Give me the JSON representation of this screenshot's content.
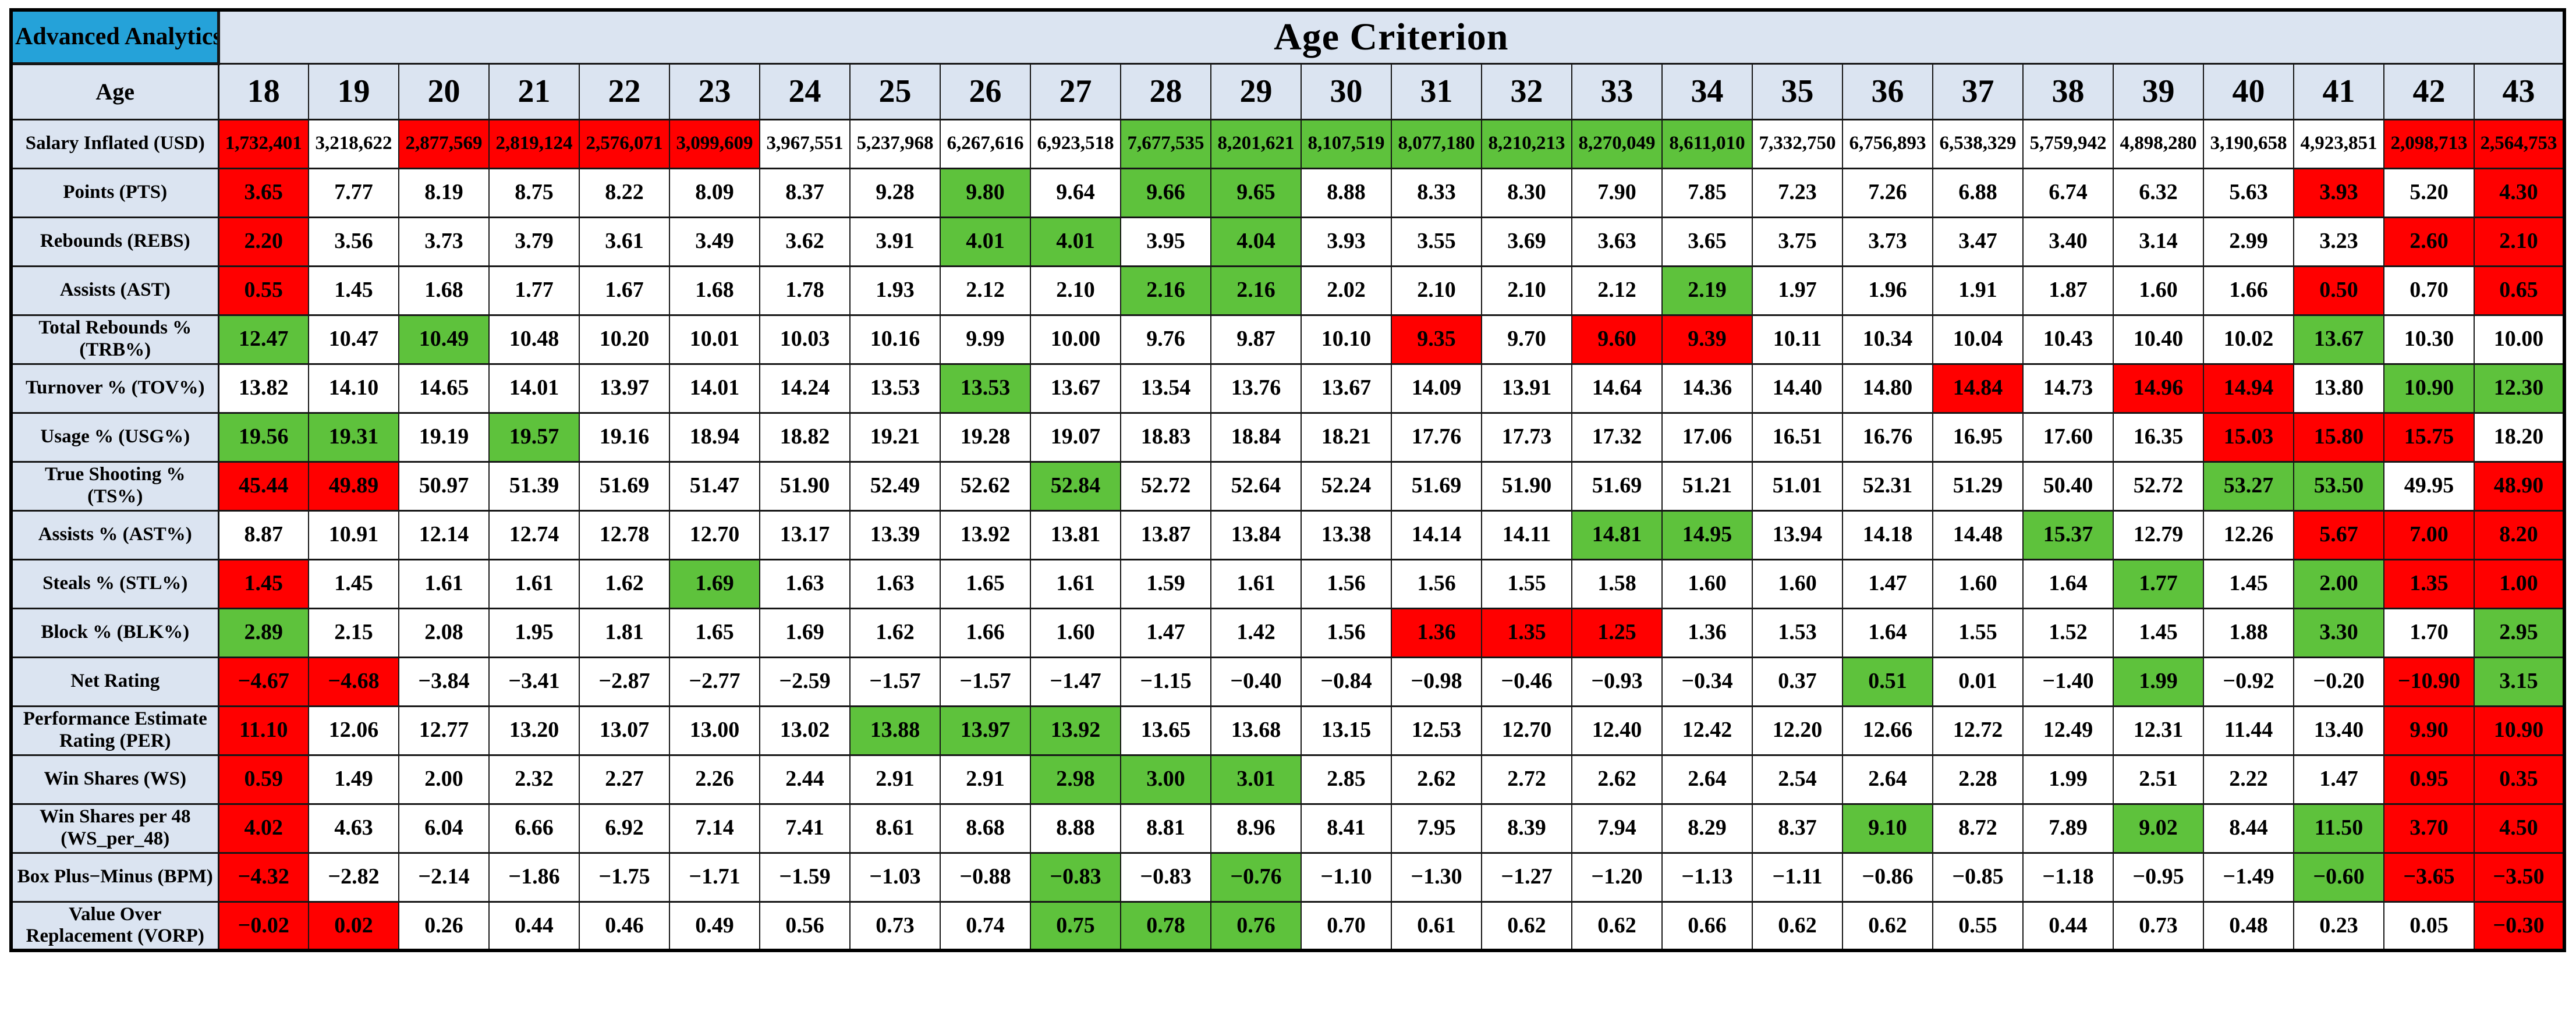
{
  "app": {
    "corner_label": "Advanced Analytics",
    "title": "Age Criterion",
    "age_row_label": "Age"
  },
  "colors": {
    "header_blue": "#25a2d9",
    "label_bg": "#dbe4f1",
    "pos_green": "#5ec23c",
    "neg_red": "#ff0000",
    "cell_white": "#ffffff",
    "border": "#161616"
  },
  "ages": [
    "18",
    "19",
    "20",
    "21",
    "22",
    "23",
    "24",
    "25",
    "26",
    "27",
    "28",
    "29",
    "30",
    "31",
    "32",
    "33",
    "34",
    "35",
    "36",
    "37",
    "38",
    "39",
    "40",
    "41",
    "42",
    "43"
  ],
  "rows": [
    {
      "label": "Salary Inflated (USD)",
      "values": [
        "1,732,401",
        "3,218,622",
        "2,877,569",
        "2,819,124",
        "2,576,071",
        "3,099,609",
        "3,967,551",
        "5,237,968",
        "6,267,616",
        "6,923,518",
        "7,677,535",
        "8,201,621",
        "8,107,519",
        "8,077,180",
        "8,210,213",
        "8,270,049",
        "8,611,010",
        "7,332,750",
        "6,756,893",
        "6,538,329",
        "5,759,942",
        "4,898,280",
        "3,190,658",
        "4,923,851",
        "2,098,713",
        "2,564,753"
      ],
      "colors": "rwrrrrwwwwgggggggwwwwwwwrr"
    },
    {
      "label": "Points (PTS)",
      "values": [
        "3.65",
        "7.77",
        "8.19",
        "8.75",
        "8.22",
        "8.09",
        "8.37",
        "9.28",
        "9.80",
        "9.64",
        "9.66",
        "9.65",
        "8.88",
        "8.33",
        "8.30",
        "7.90",
        "7.85",
        "7.23",
        "7.26",
        "6.88",
        "6.74",
        "6.32",
        "5.63",
        "3.93",
        "5.20",
        "4.30"
      ],
      "colors": "rwwwwwwwgwggwwwwwwwwwwwrwr"
    },
    {
      "label": "Rebounds (REBS)",
      "values": [
        "2.20",
        "3.56",
        "3.73",
        "3.79",
        "3.61",
        "3.49",
        "3.62",
        "3.91",
        "4.01",
        "4.01",
        "3.95",
        "4.04",
        "3.93",
        "3.55",
        "3.69",
        "3.63",
        "3.65",
        "3.75",
        "3.73",
        "3.47",
        "3.40",
        "3.14",
        "2.99",
        "3.23",
        "2.60",
        "2.10"
      ],
      "colors": "rwwwwwwwggwgwwwwwwwwwwwwrr"
    },
    {
      "label": "Assists (AST)",
      "values": [
        "0.55",
        "1.45",
        "1.68",
        "1.77",
        "1.67",
        "1.68",
        "1.78",
        "1.93",
        "2.12",
        "2.10",
        "2.16",
        "2.16",
        "2.02",
        "2.10",
        "2.10",
        "2.12",
        "2.19",
        "1.97",
        "1.96",
        "1.91",
        "1.87",
        "1.60",
        "1.66",
        "0.50",
        "0.70",
        "0.65"
      ],
      "colors": "rwwwwwwwwwggwwwwgwwwwwwrwr"
    },
    {
      "label": "Total Rebounds % (TRB%)",
      "values": [
        "12.47",
        "10.47",
        "10.49",
        "10.48",
        "10.20",
        "10.01",
        "10.03",
        "10.16",
        "9.99",
        "10.00",
        "9.76",
        "9.87",
        "10.10",
        "9.35",
        "9.70",
        "9.60",
        "9.39",
        "10.11",
        "10.34",
        "10.04",
        "10.43",
        "10.40",
        "10.02",
        "13.67",
        "10.30",
        "10.00"
      ],
      "colors": "gwgwwwwwwwwwwrwrrwwwwwwgww"
    },
    {
      "label": "Turnover % (TOV%)",
      "values": [
        "13.82",
        "14.10",
        "14.65",
        "14.01",
        "13.97",
        "14.01",
        "14.24",
        "13.53",
        "13.53",
        "13.67",
        "13.54",
        "13.76",
        "13.67",
        "14.09",
        "13.91",
        "14.64",
        "14.36",
        "14.40",
        "14.80",
        "14.84",
        "14.73",
        "14.96",
        "14.94",
        "13.80",
        "10.90",
        "12.30"
      ],
      "colors": "wwwwwwwwgwwwwwwwwwwrwrrwgg"
    },
    {
      "label": "Usage % (USG%)",
      "values": [
        "19.56",
        "19.31",
        "19.19",
        "19.57",
        "19.16",
        "18.94",
        "18.82",
        "19.21",
        "19.28",
        "19.07",
        "18.83",
        "18.84",
        "18.21",
        "17.76",
        "17.73",
        "17.32",
        "17.06",
        "16.51",
        "16.76",
        "16.95",
        "17.60",
        "16.35",
        "15.03",
        "15.80",
        "15.75",
        "18.20"
      ],
      "colors": "ggwgwwwwwwwwwwwwwwwwwwrrrw"
    },
    {
      "label": "True Shooting % (TS%)",
      "values": [
        "45.44",
        "49.89",
        "50.97",
        "51.39",
        "51.69",
        "51.47",
        "51.90",
        "52.49",
        "52.62",
        "52.84",
        "52.72",
        "52.64",
        "52.24",
        "51.69",
        "51.90",
        "51.69",
        "51.21",
        "51.01",
        "52.31",
        "51.29",
        "50.40",
        "52.72",
        "53.27",
        "53.50",
        "49.95",
        "48.90"
      ],
      "colors": "rrwwwwwwwgwwwwwwwwwwwwggwr"
    },
    {
      "label": "Assists % (AST%)",
      "values": [
        "8.87",
        "10.91",
        "12.14",
        "12.74",
        "12.78",
        "12.70",
        "13.17",
        "13.39",
        "13.92",
        "13.81",
        "13.87",
        "13.84",
        "13.38",
        "14.14",
        "14.11",
        "14.81",
        "14.95",
        "13.94",
        "14.18",
        "14.48",
        "15.37",
        "12.79",
        "12.26",
        "5.67",
        "7.00",
        "8.20"
      ],
      "colors": "wwwwwwwwwwwwwwwggwwwgwwrrr"
    },
    {
      "label": "Steals % (STL%)",
      "values": [
        "1.45",
        "1.45",
        "1.61",
        "1.61",
        "1.62",
        "1.69",
        "1.63",
        "1.63",
        "1.65",
        "1.61",
        "1.59",
        "1.61",
        "1.56",
        "1.56",
        "1.55",
        "1.58",
        "1.60",
        "1.60",
        "1.47",
        "1.60",
        "1.64",
        "1.77",
        "1.45",
        "2.00",
        "1.35",
        "1.00"
      ],
      "colors": "rwwwwgwwwwwwwwwwwwwwwgwgrr"
    },
    {
      "label": "Block % (BLK%)",
      "values": [
        "2.89",
        "2.15",
        "2.08",
        "1.95",
        "1.81",
        "1.65",
        "1.69",
        "1.62",
        "1.66",
        "1.60",
        "1.47",
        "1.42",
        "1.56",
        "1.36",
        "1.35",
        "1.25",
        "1.36",
        "1.53",
        "1.64",
        "1.55",
        "1.52",
        "1.45",
        "1.88",
        "3.30",
        "1.70",
        "2.95"
      ],
      "colors": "gwwwwwwwwwwwwrrrwwwwwwwgwg"
    },
    {
      "label": "Net Rating",
      "values": [
        "−4.67",
        "−4.68",
        "−3.84",
        "−3.41",
        "−2.87",
        "−2.77",
        "−2.59",
        "−1.57",
        "−1.57",
        "−1.47",
        "−1.15",
        "−0.40",
        "−0.84",
        "−0.98",
        "−0.46",
        "−0.93",
        "−0.34",
        "0.37",
        "0.51",
        "0.01",
        "−1.40",
        "1.99",
        "−0.92",
        "−0.20",
        "−10.90",
        "3.15"
      ],
      "colors": "rrwwwwwwwwwwwwwwwwgwwgwwrg"
    },
    {
      "label": "Performance Estimate Rating (PER)",
      "values": [
        "11.10",
        "12.06",
        "12.77",
        "13.20",
        "13.07",
        "13.00",
        "13.02",
        "13.88",
        "13.97",
        "13.92",
        "13.65",
        "13.68",
        "13.15",
        "12.53",
        "12.70",
        "12.40",
        "12.42",
        "12.20",
        "12.66",
        "12.72",
        "12.49",
        "12.31",
        "11.44",
        "13.40",
        "9.90",
        "10.90"
      ],
      "colors": "rwwwwwwgggwwwwwwwwwwwwwwrr"
    },
    {
      "label": "Win Shares (WS)",
      "values": [
        "0.59",
        "1.49",
        "2.00",
        "2.32",
        "2.27",
        "2.26",
        "2.44",
        "2.91",
        "2.91",
        "2.98",
        "3.00",
        "3.01",
        "2.85",
        "2.62",
        "2.72",
        "2.62",
        "2.64",
        "2.54",
        "2.64",
        "2.28",
        "1.99",
        "2.51",
        "2.22",
        "1.47",
        "0.95",
        "0.35"
      ],
      "colors": "rwwwwwwwwgggwwwwwwwwwwwwrr"
    },
    {
      "label": "Win Shares per 48 (WS_per_48)",
      "values": [
        "4.02",
        "4.63",
        "6.04",
        "6.66",
        "6.92",
        "7.14",
        "7.41",
        "8.61",
        "8.68",
        "8.88",
        "8.81",
        "8.96",
        "8.41",
        "7.95",
        "8.39",
        "7.94",
        "8.29",
        "8.37",
        "9.10",
        "8.72",
        "7.89",
        "9.02",
        "8.44",
        "11.50",
        "3.70",
        "4.50"
      ],
      "colors": "rwwwwwwwwwwwwwwwwwgwwgwgrr"
    },
    {
      "label": "Box Plus−Minus (BPM)",
      "values": [
        "−4.32",
        "−2.82",
        "−2.14",
        "−1.86",
        "−1.75",
        "−1.71",
        "−1.59",
        "−1.03",
        "−0.88",
        "−0.83",
        "−0.83",
        "−0.76",
        "−1.10",
        "−1.30",
        "−1.27",
        "−1.20",
        "−1.13",
        "−1.11",
        "−0.86",
        "−0.85",
        "−1.18",
        "−0.95",
        "−1.49",
        "−0.60",
        "−3.65",
        "−3.50"
      ],
      "colors": "rwwwwwwwwgwgwwwwwwwwwwwgrr"
    },
    {
      "label": "Value Over Replacement (VORP)",
      "values": [
        "−0.02",
        "0.02",
        "0.26",
        "0.44",
        "0.46",
        "0.49",
        "0.56",
        "0.73",
        "0.74",
        "0.75",
        "0.78",
        "0.76",
        "0.70",
        "0.61",
        "0.62",
        "0.62",
        "0.66",
        "0.62",
        "0.62",
        "0.55",
        "0.44",
        "0.73",
        "0.48",
        "0.23",
        "0.05",
        "−0.30"
      ],
      "colors": "rrwwwwwwwgggwwwwwwwwwwwwwr"
    }
  ]
}
